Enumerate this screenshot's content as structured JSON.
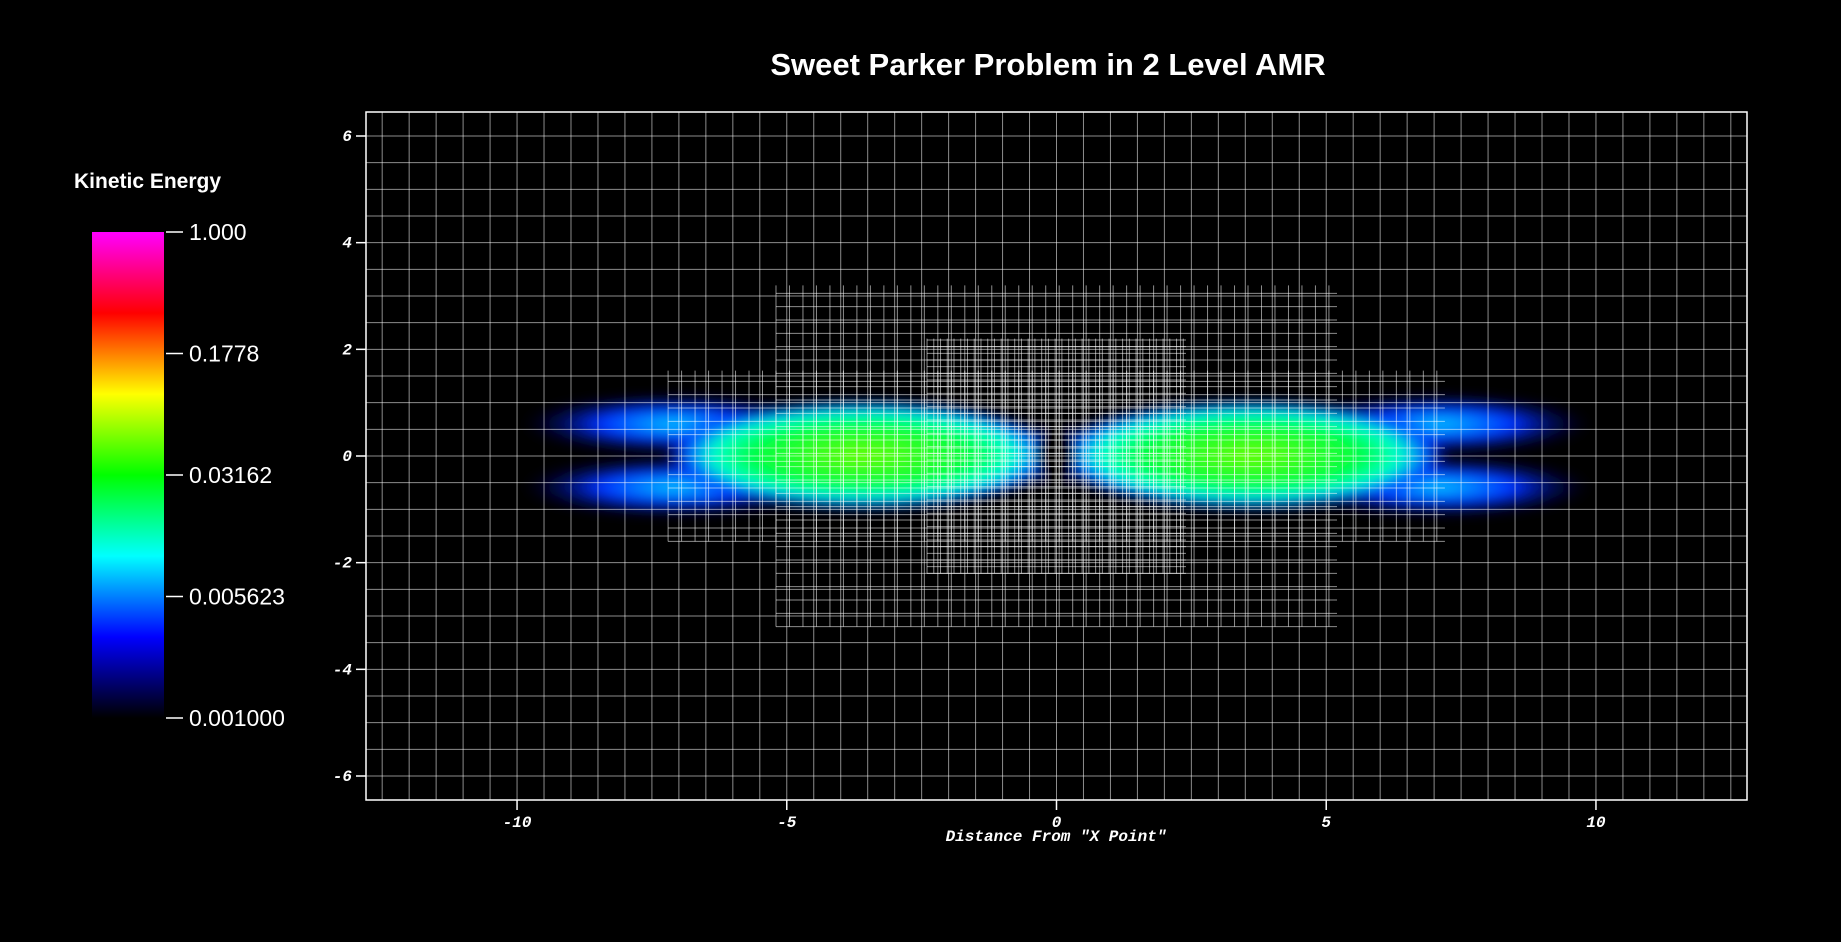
{
  "chart_data": {
    "type": "pseudocolor",
    "title": "Sweet Parker Problem in 2 Level AMR",
    "x_label": "Distance From \"X Point\"",
    "xlim": [
      -12.8,
      12.8
    ],
    "ylim": [
      -6.45,
      6.45
    ],
    "xticks": [
      -10,
      -5,
      0,
      5,
      10
    ],
    "yticks": [
      -6,
      -4,
      -2,
      0,
      2,
      4,
      6
    ],
    "colorbar": {
      "title": "Kinetic Energy",
      "log": true,
      "lim": [
        0.001,
        1
      ],
      "ticks": [
        {
          "value": 1,
          "label": "1.000"
        },
        0.1778,
        0.03162,
        0.005623,
        {
          "value": 0.001,
          "label": "0.001000"
        }
      ],
      "colors": [
        "#ff00ff",
        "#ff0000",
        "#ffff00",
        "#00ff00",
        "#00ffff",
        "#0000ff",
        "#000000"
      ]
    }
  }
}
